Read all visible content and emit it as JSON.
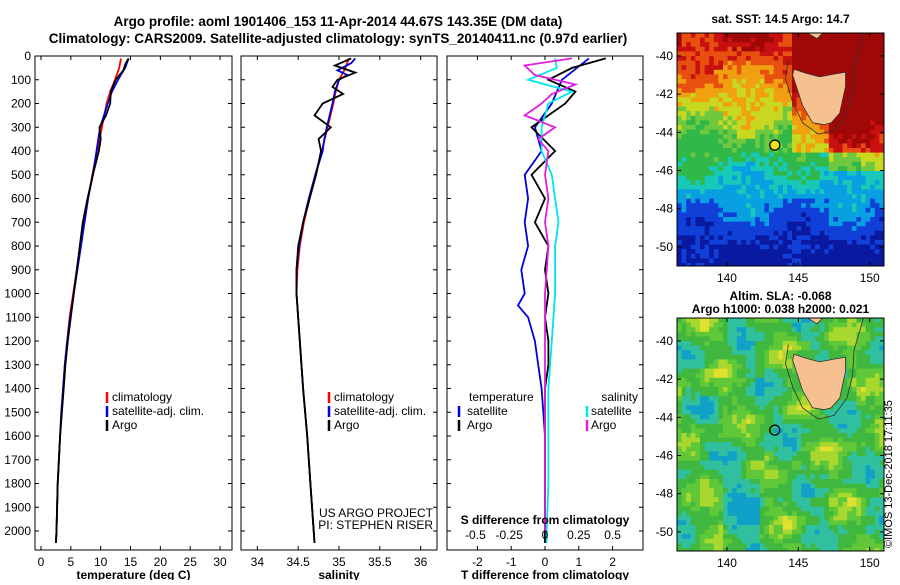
{
  "titles": {
    "line1": "Argo profile: aoml 1901406_153 11-Apr-2014 44.67S 143.35E (DM data)",
    "line2": "Climatology: CARS2009. Satellite-adjusted climatology: synTS_20140411.nc (0.97d earlier)"
  },
  "colors": {
    "climatology": "#ff0000",
    "satellite": "#0000dd",
    "argo": "#000000",
    "t_sat": "#0000dd",
    "s_sat": "#00e5ee",
    "s_argo": "#e020e0"
  },
  "chart_data": [
    {
      "type": "line",
      "xlabel": "temperature (deg C)",
      "xlim": [
        -1,
        32
      ],
      "xticks": [
        0,
        5,
        10,
        15,
        20,
        25,
        30
      ],
      "ylim": [
        2080,
        0
      ],
      "yticks": [
        0,
        100,
        200,
        300,
        400,
        500,
        600,
        700,
        800,
        900,
        1000,
        1100,
        1200,
        1300,
        1400,
        1500,
        1600,
        1700,
        1800,
        1900,
        2000
      ],
      "legend": [
        "climatology",
        "satellite-adj. clim.",
        "Argo"
      ],
      "series": [
        {
          "name": "climatology",
          "depth": [
            10,
            50,
            100,
            150,
            200,
            300,
            400,
            500,
            600,
            700,
            800,
            900,
            1000,
            1100,
            1200,
            1300,
            1400,
            1500,
            1600,
            1700,
            1800,
            1900,
            2000,
            2050
          ],
          "values": [
            13.4,
            13.1,
            12.4,
            11.6,
            11.0,
            10.2,
            9.4,
            8.6,
            7.9,
            7.3,
            6.6,
            6.0,
            5.4,
            4.8,
            4.4,
            4.0,
            3.7,
            3.4,
            3.2,
            3.0,
            2.8,
            2.7,
            2.6,
            2.5
          ]
        },
        {
          "name": "satellite-adj. clim.",
          "depth": [
            10,
            50,
            100,
            150,
            200,
            300,
            400,
            500,
            600,
            700,
            800,
            900,
            1000,
            1100,
            1200,
            1300,
            1400,
            1500,
            1600,
            1700,
            1800,
            1900,
            2000,
            2050
          ],
          "values": [
            14.7,
            14.1,
            12.9,
            11.9,
            11.2,
            9.9,
            9.3,
            8.7,
            7.9,
            7.3,
            6.7,
            6.1,
            5.5,
            4.9,
            4.4,
            4.0,
            3.7,
            3.4,
            3.2,
            3.0,
            2.8,
            2.7,
            2.6,
            2.5
          ]
        },
        {
          "name": "Argo",
          "depth": [
            10,
            30,
            60,
            100,
            150,
            200,
            250,
            300,
            350,
            400,
            500,
            600,
            700,
            800,
            900,
            1000,
            1100,
            1200,
            1300,
            1400,
            1500,
            1600,
            1700,
            1800,
            1900,
            2000,
            2050
          ],
          "values": [
            14.7,
            14.2,
            13.8,
            12.5,
            11.7,
            11.6,
            10.9,
            9.8,
            10.0,
            9.7,
            8.7,
            7.8,
            7.0,
            6.5,
            6.0,
            5.5,
            5.0,
            4.5,
            4.1,
            3.8,
            3.5,
            3.2,
            3.0,
            2.8,
            2.7,
            2.6,
            2.5
          ]
        }
      ]
    },
    {
      "type": "line",
      "xlabel": "salinity",
      "xlim": [
        33.8,
        36.2
      ],
      "xticks": [
        34,
        34.5,
        35,
        35.5,
        36
      ],
      "xticklabels": [
        "34",
        "34.5",
        "35",
        "35.5",
        "36"
      ],
      "ylim": [
        2080,
        0
      ],
      "legend": [
        "climatology",
        "satellite-adj. clim.",
        "Argo"
      ],
      "annotations": [
        "US ARGO PROJECT",
        "PI: STEPHEN RISER"
      ],
      "series": [
        {
          "name": "climatology",
          "depth": [
            10,
            50,
            100,
            150,
            200,
            300,
            400,
            500,
            600,
            700,
            800,
            900,
            1000,
            1200,
            1400,
            1600,
            1800,
            2000,
            2050
          ],
          "values": [
            35.12,
            35.08,
            35.0,
            34.96,
            34.93,
            34.86,
            34.79,
            34.71,
            34.64,
            34.57,
            34.52,
            34.49,
            34.48,
            34.52,
            34.56,
            34.61,
            34.65,
            34.69,
            34.7
          ]
        },
        {
          "name": "satellite-adj. clim.",
          "depth": [
            10,
            30,
            60,
            80,
            100,
            150,
            200,
            300,
            350,
            400,
            500,
            600,
            700,
            800,
            900,
            1000,
            1200,
            1400,
            1600,
            1800,
            2000,
            2050
          ],
          "values": [
            35.2,
            35.15,
            34.98,
            35.1,
            35.0,
            34.95,
            34.92,
            34.85,
            34.82,
            34.8,
            34.71,
            34.63,
            34.56,
            34.51,
            34.48,
            34.48,
            34.52,
            34.56,
            34.61,
            34.65,
            34.69,
            34.7
          ]
        },
        {
          "name": "Argo",
          "depth": [
            10,
            40,
            70,
            100,
            130,
            160,
            200,
            250,
            300,
            350,
            400,
            500,
            600,
            700,
            800,
            900,
            1000,
            1200,
            1400,
            1600,
            1800,
            2000,
            2050
          ],
          "values": [
            35.15,
            34.95,
            35.2,
            34.98,
            34.92,
            35.05,
            34.8,
            34.7,
            34.9,
            34.75,
            34.78,
            34.72,
            34.64,
            34.56,
            34.5,
            34.48,
            34.48,
            34.52,
            34.56,
            34.61,
            34.65,
            34.69,
            34.7
          ]
        }
      ]
    },
    {
      "type": "line",
      "xlabel": "T difference from climatology",
      "xlabel2": "S difference from climatology",
      "xlim": [
        -2.9,
        2.9
      ],
      "xticks": [
        -2,
        -1,
        0,
        1,
        2
      ],
      "x2ticklabels": [
        "-0.5",
        "-0.25",
        "0",
        "0.25",
        "0.5"
      ],
      "ylim": [
        2080,
        0
      ],
      "legend_left_title": "temperature",
      "legend_left": [
        "satellite",
        "Argo"
      ],
      "legend_right_title": "salinity",
      "legend_right": [
        "satellite",
        "Argo"
      ],
      "series": [
        {
          "name": "T satellite",
          "depth": [
            10,
            100,
            200,
            300,
            400,
            500,
            600,
            700,
            800,
            900,
            1000,
            1050,
            1100,
            1200,
            1300,
            1400,
            1600,
            1800,
            2000,
            2050
          ],
          "values": [
            1.3,
            0.5,
            0.2,
            -0.3,
            -0.1,
            -0.6,
            -0.5,
            -0.6,
            -0.5,
            -0.7,
            -0.6,
            -0.8,
            -0.5,
            -0.3,
            -0.2,
            -0.1,
            0.0,
            0.0,
            0.0,
            0.0
          ]
        },
        {
          "name": "T Argo",
          "depth": [
            10,
            50,
            100,
            150,
            200,
            300,
            400,
            500,
            600,
            700,
            800,
            900,
            1000,
            1100,
            1200,
            1300,
            1400,
            1600,
            1800,
            2000,
            2050
          ],
          "values": [
            1.8,
            0.8,
            0.1,
            0.9,
            0.6,
            -0.4,
            0.3,
            -0.4,
            0.0,
            -0.3,
            0.1,
            0.0,
            0.1,
            0.0,
            0.1,
            0.1,
            0.0,
            0.0,
            0.0,
            0.0,
            0.0
          ]
        },
        {
          "name": "S satellite",
          "depth": [
            10,
            50,
            100,
            150,
            200,
            300,
            400,
            500,
            600,
            700,
            800,
            1000,
            1200,
            1400,
            1600,
            1800,
            2000,
            2050
          ],
          "values": [
            0.3,
            0.35,
            -0.5,
            0.8,
            0.1,
            -0.1,
            -0.1,
            0.2,
            0.3,
            0.4,
            0.3,
            0.3,
            0.2,
            0.1,
            0.1,
            0.1,
            0.05,
            0.05
          ]
        },
        {
          "name": "S Argo",
          "depth": [
            10,
            40,
            80,
            120,
            160,
            200,
            250,
            300,
            350,
            400,
            500,
            600,
            700,
            800,
            1000,
            1400,
            1800,
            2000
          ],
          "values": [
            0.8,
            -0.6,
            -0.3,
            0.9,
            0.2,
            -0.1,
            -0.6,
            0.3,
            -0.2,
            0.1,
            0.0,
            0.1,
            0.0,
            0.1,
            0.0,
            0.0,
            0.0,
            0.0
          ]
        }
      ]
    },
    {
      "type": "heatmap",
      "title": "sat. SST: 14.5 Argo: 14.7",
      "xticks": [
        140,
        145,
        150
      ],
      "yticks": [
        -40,
        -42,
        -44,
        -46,
        -48,
        -50
      ],
      "xlim": [
        136.5,
        151
      ],
      "ylim": [
        -51,
        -38.8
      ],
      "marker": [
        143.35,
        -44.67
      ]
    },
    {
      "type": "heatmap",
      "title": "Altim. SLA: -0.068",
      "subtitle": "Argo h1000: 0.038 h2000: 0.021",
      "xticks": [
        140,
        145,
        150
      ],
      "yticks": [
        -40,
        -42,
        -44,
        -46,
        -48,
        -50
      ],
      "xlim": [
        136.5,
        151
      ],
      "ylim": [
        -51,
        -38.8
      ],
      "marker": [
        143.35,
        -44.67
      ]
    }
  ],
  "footer_stamp": "©IMOS 13-Dec-2018 17:11:35"
}
